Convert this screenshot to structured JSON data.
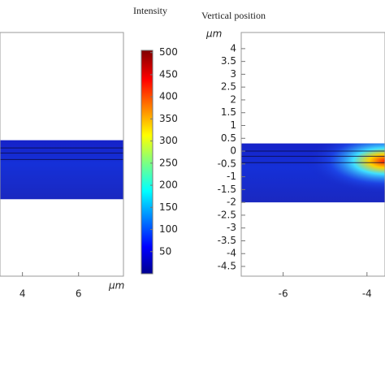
{
  "chart_data": [
    {
      "type": "heatmap",
      "x_unit": "μm",
      "xlim": [
        3.2,
        7.6
      ],
      "ylim": [
        -5.0,
        4.5
      ],
      "xticks": [
        4,
        6
      ],
      "region": [
        -2.0,
        0.3
      ],
      "interfaces": [
        0,
        -0.2,
        -0.45
      ]
    },
    {
      "type": "colorbar",
      "title": "Intensity",
      "lim": [
        0,
        505
      ],
      "ticks": [
        50,
        100,
        150,
        200,
        250,
        300,
        350,
        400,
        450,
        500
      ]
    },
    {
      "type": "heatmap",
      "title": "Vertical position",
      "y_unit": "μm",
      "xlim": [
        -7.0,
        -3.57
      ],
      "ylim": [
        -4.88,
        4.63
      ],
      "xticks": [
        -6,
        -4
      ],
      "yticks": [
        4,
        3.5,
        3,
        2.5,
        2,
        1.5,
        1,
        0.5,
        0,
        -0.5,
        -1,
        -1.5,
        -2,
        -2.5,
        -3,
        -3.5,
        -4,
        -4.5
      ],
      "region": [
        -2.0,
        0.3
      ],
      "interfaces": [
        0,
        -0.2,
        -0.45
      ]
    }
  ]
}
